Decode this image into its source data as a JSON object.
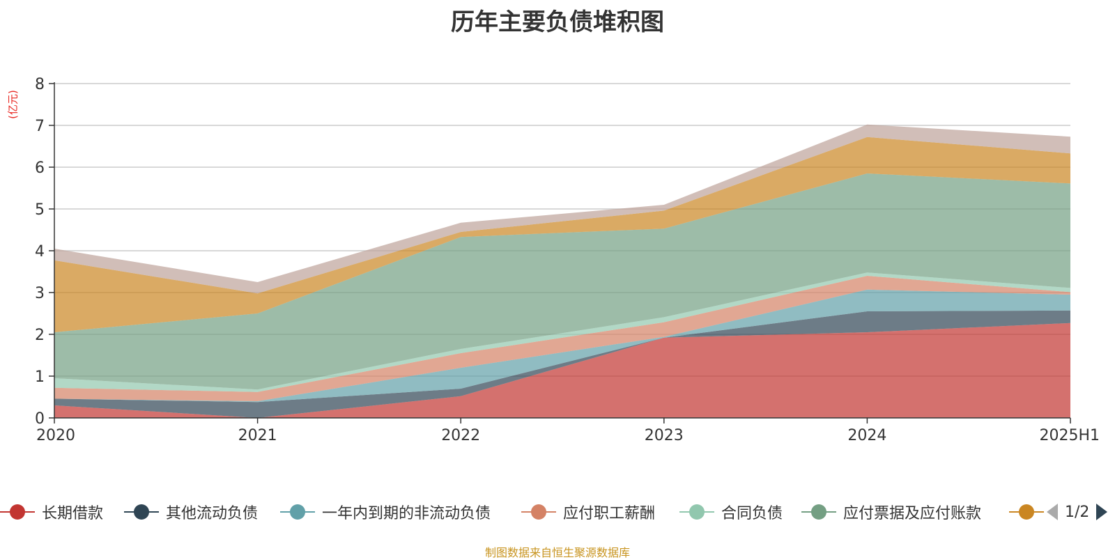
{
  "chart_data": {
    "type": "area",
    "stacked": true,
    "title": "历年主要负债堆积图",
    "ylabel": "(亿元)",
    "categories": [
      "2020",
      "2021",
      "2022",
      "2023",
      "2024",
      "2025H1"
    ],
    "ylim": [
      0,
      8
    ],
    "yticks": [
      0,
      1,
      2,
      3,
      4,
      5,
      6,
      7,
      8
    ],
    "grid": true,
    "legend_position": "bottom",
    "legend_page": "1/2",
    "series": [
      {
        "name": "长期借款",
        "color": "#c23531",
        "values": [
          0.3,
          0.0,
          0.52,
          1.92,
          2.05,
          2.27
        ]
      },
      {
        "name": "其他流动负债",
        "color": "#2f4554",
        "values": [
          0.16,
          0.38,
          0.18,
          0.0,
          0.5,
          0.3
        ]
      },
      {
        "name": "一年内到期的非流动负债",
        "color": "#61a0a8",
        "values": [
          0.0,
          0.02,
          0.5,
          0.02,
          0.52,
          0.38
        ]
      },
      {
        "name": "应付职工薪酬",
        "color": "#d48265",
        "values": [
          0.26,
          0.22,
          0.35,
          0.35,
          0.33,
          0.06
        ]
      },
      {
        "name": "合同负债",
        "color": "#91c7ae",
        "values": [
          0.23,
          0.06,
          0.1,
          0.12,
          0.08,
          0.1
        ]
      },
      {
        "name": "应付票据及应付账款",
        "color": "#749f83",
        "values": [
          1.1,
          1.82,
          2.68,
          2.12,
          2.37,
          2.5
        ]
      },
      {
        "name": "",
        "color": "#ca8622",
        "values": [
          1.72,
          0.48,
          0.12,
          0.43,
          0.87,
          0.72
        ]
      },
      {
        "name": "",
        "color": "#bda29a",
        "values": [
          0.28,
          0.27,
          0.22,
          0.14,
          0.3,
          0.4
        ]
      }
    ]
  },
  "footer": "制图数据来自恒生聚源数据库"
}
